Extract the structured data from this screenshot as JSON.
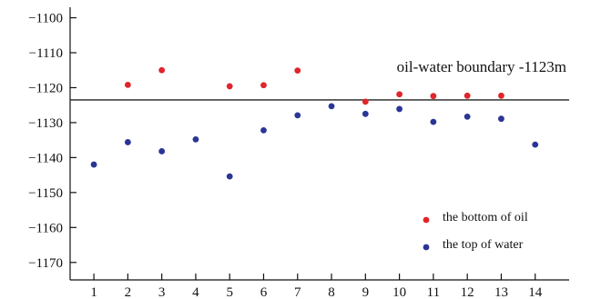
{
  "chart_data": {
    "type": "scatter",
    "title": "",
    "xlabel": "",
    "ylabel": "",
    "x_ticks": [
      1,
      2,
      3,
      4,
      5,
      6,
      7,
      8,
      9,
      10,
      11,
      12,
      13,
      14
    ],
    "y_ticks": [
      -1100,
      -1110,
      -1120,
      -1130,
      -1140,
      -1150,
      -1160,
      -1170
    ],
    "xlim": [
      0.3,
      15
    ],
    "ylim": [
      -1175,
      -1097
    ],
    "grid": false,
    "legend_position": "bottom-right",
    "series": [
      {
        "name": "the bottom of oil",
        "color": "#e0252b",
        "points": [
          [
            2,
            -1119.2
          ],
          [
            3,
            -1115
          ],
          [
            5,
            -1119.6
          ],
          [
            6,
            -1119.3
          ],
          [
            7,
            -1115.1
          ],
          [
            9,
            -1124
          ],
          [
            10,
            -1121.9
          ],
          [
            11,
            -1122.4
          ],
          [
            12,
            -1122.3
          ],
          [
            13,
            -1122.3
          ]
        ]
      },
      {
        "name": "the top of water",
        "color": "#2a3596",
        "points": [
          [
            1,
            -1142
          ],
          [
            2,
            -1135.6
          ],
          [
            3,
            -1138.2
          ],
          [
            4,
            -1134.8
          ],
          [
            5,
            -1145.4
          ],
          [
            6,
            -1132.2
          ],
          [
            7,
            -1127.9
          ],
          [
            8,
            -1125.3
          ],
          [
            9,
            -1127.5
          ],
          [
            10,
            -1126.1
          ],
          [
            11,
            -1129.8
          ],
          [
            12,
            -1128.3
          ],
          [
            13,
            -1128.9
          ],
          [
            14,
            -1136.3
          ]
        ]
      }
    ],
    "reference_line": {
      "value": -1123.5,
      "label": "oil-water boundary -1123m",
      "color": "#222222"
    }
  }
}
